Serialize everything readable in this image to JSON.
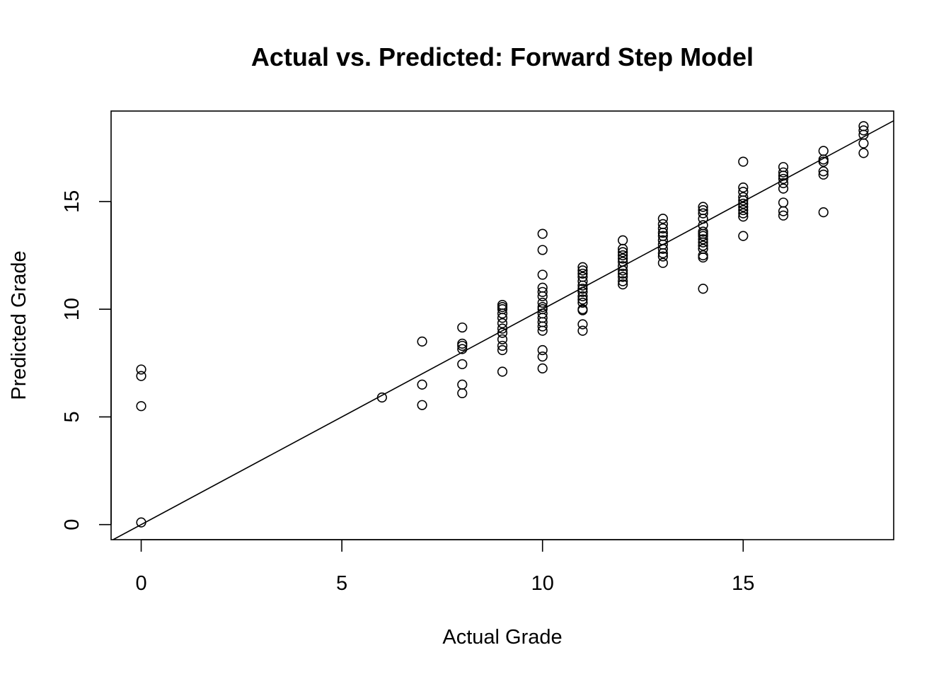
{
  "chart_data": {
    "type": "scatter",
    "title": "Actual vs. Predicted: Forward Step Model",
    "xlabel": "Actual Grade",
    "ylabel": "Predicted Grade",
    "xlim": [
      -0.75,
      18.75
    ],
    "ylim": [
      -0.7,
      19.2
    ],
    "x_ticks": [
      0,
      5,
      10,
      15
    ],
    "y_ticks": [
      0,
      5,
      10,
      15
    ],
    "x_tick_labels": [
      "0",
      "5",
      "10",
      "15"
    ],
    "y_tick_labels": [
      "0",
      "5",
      "10",
      "15"
    ],
    "grid": false,
    "reference_line": {
      "intercept": 0,
      "slope": 1
    },
    "series": [
      {
        "marker": "open-circle",
        "points": [
          [
            0,
            7.2
          ],
          [
            0,
            6.9
          ],
          [
            0,
            5.5
          ],
          [
            0,
            0.1
          ],
          [
            6,
            5.9
          ],
          [
            7,
            8.5
          ],
          [
            7,
            6.5
          ],
          [
            7,
            5.55
          ],
          [
            8,
            9.15
          ],
          [
            8,
            8.4
          ],
          [
            8,
            8.3
          ],
          [
            8,
            8.15
          ],
          [
            8,
            7.45
          ],
          [
            8,
            6.5
          ],
          [
            8,
            6.1
          ],
          [
            9,
            10.2
          ],
          [
            9,
            10.1
          ],
          [
            9,
            10.0
          ],
          [
            9,
            9.8
          ],
          [
            9,
            9.6
          ],
          [
            9,
            9.35
          ],
          [
            9,
            9.1
          ],
          [
            9,
            8.9
          ],
          [
            9,
            8.6
          ],
          [
            9,
            8.3
          ],
          [
            9,
            8.1
          ],
          [
            9,
            7.1
          ],
          [
            10,
            13.5
          ],
          [
            10,
            12.75
          ],
          [
            10,
            11.6
          ],
          [
            10,
            11.0
          ],
          [
            10,
            10.8
          ],
          [
            10,
            10.6
          ],
          [
            10,
            10.3
          ],
          [
            10,
            10.1
          ],
          [
            10,
            10.0
          ],
          [
            10,
            9.8
          ],
          [
            10,
            9.6
          ],
          [
            10,
            9.4
          ],
          [
            10,
            9.2
          ],
          [
            10,
            9.0
          ],
          [
            10,
            8.1
          ],
          [
            10,
            7.8
          ],
          [
            10,
            7.25
          ],
          [
            11,
            11.95
          ],
          [
            11,
            11.8
          ],
          [
            11,
            11.65
          ],
          [
            11,
            11.5
          ],
          [
            11,
            11.3
          ],
          [
            11,
            11.1
          ],
          [
            11,
            10.95
          ],
          [
            11,
            10.8
          ],
          [
            11,
            10.6
          ],
          [
            11,
            10.45
          ],
          [
            11,
            10.3
          ],
          [
            11,
            10.0
          ],
          [
            11,
            9.95
          ],
          [
            11,
            9.3
          ],
          [
            11,
            9.0
          ],
          [
            12,
            13.2
          ],
          [
            12,
            12.8
          ],
          [
            12,
            12.65
          ],
          [
            12,
            12.5
          ],
          [
            12,
            12.35
          ],
          [
            12,
            12.2
          ],
          [
            12,
            12.0
          ],
          [
            12,
            11.8
          ],
          [
            12,
            11.65
          ],
          [
            12,
            11.5
          ],
          [
            12,
            11.3
          ],
          [
            12,
            11.15
          ],
          [
            13,
            14.2
          ],
          [
            13,
            13.95
          ],
          [
            13,
            13.75
          ],
          [
            13,
            13.55
          ],
          [
            13,
            13.4
          ],
          [
            13,
            13.2
          ],
          [
            13,
            13.0
          ],
          [
            13,
            12.8
          ],
          [
            13,
            12.6
          ],
          [
            13,
            12.45
          ],
          [
            13,
            12.15
          ],
          [
            14,
            14.75
          ],
          [
            14,
            14.6
          ],
          [
            14,
            14.45
          ],
          [
            14,
            14.2
          ],
          [
            14,
            13.9
          ],
          [
            14,
            13.6
          ],
          [
            14,
            13.5
          ],
          [
            14,
            13.4
          ],
          [
            14,
            13.25
          ],
          [
            14,
            13.1
          ],
          [
            14,
            12.95
          ],
          [
            14,
            12.8
          ],
          [
            14,
            12.5
          ],
          [
            14,
            12.4
          ],
          [
            14,
            10.95
          ],
          [
            15,
            16.85
          ],
          [
            15,
            15.65
          ],
          [
            15,
            15.45
          ],
          [
            15,
            15.2
          ],
          [
            15,
            15.05
          ],
          [
            15,
            14.9
          ],
          [
            15,
            14.75
          ],
          [
            15,
            14.6
          ],
          [
            15,
            14.45
          ],
          [
            15,
            14.3
          ],
          [
            15,
            13.4
          ],
          [
            16,
            16.6
          ],
          [
            16,
            16.35
          ],
          [
            16,
            16.2
          ],
          [
            16,
            16.05
          ],
          [
            16,
            15.85
          ],
          [
            16,
            15.6
          ],
          [
            16,
            14.95
          ],
          [
            16,
            14.55
          ],
          [
            16,
            14.35
          ],
          [
            17,
            17.35
          ],
          [
            17,
            16.95
          ],
          [
            17,
            16.85
          ],
          [
            17,
            16.4
          ],
          [
            17,
            16.25
          ],
          [
            17,
            14.5
          ],
          [
            18,
            18.5
          ],
          [
            18,
            18.3
          ],
          [
            18,
            18.1
          ],
          [
            18,
            17.7
          ],
          [
            18,
            17.25
          ]
        ]
      }
    ]
  }
}
